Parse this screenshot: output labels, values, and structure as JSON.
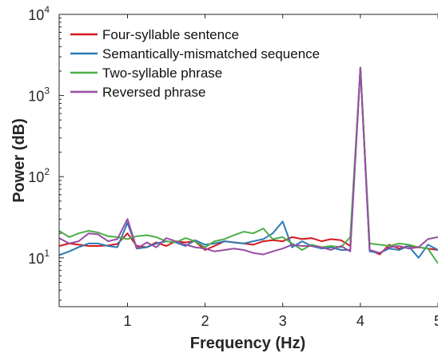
{
  "chart_data": {
    "type": "line",
    "title": "",
    "xlabel": "Frequency (Hz)",
    "ylabel": "Power (dB)",
    "xlim": [
      0.12,
      5
    ],
    "ylim": [
      2.5,
      10000
    ],
    "yscale": "log",
    "grid": false,
    "legend_position": "top-left",
    "x_ticks": [
      {
        "value": 1,
        "label": "1"
      },
      {
        "value": 2,
        "label": "2"
      },
      {
        "value": 3,
        "label": "3"
      },
      {
        "value": 4,
        "label": "4"
      },
      {
        "value": 5,
        "label": "5"
      }
    ],
    "y_ticks": [
      {
        "value": 10,
        "base": "10",
        "exp": "1"
      },
      {
        "value": 100,
        "base": "10",
        "exp": "2"
      },
      {
        "value": 1000,
        "base": "10",
        "exp": "3"
      },
      {
        "value": 10000,
        "base": "10",
        "exp": "4"
      }
    ],
    "series": [
      {
        "name": "Four-syllable sentence",
        "color": "#d7191c",
        "x": [
          0.12,
          0.25,
          0.37,
          0.5,
          0.62,
          0.75,
          0.87,
          1.0,
          1.12,
          1.25,
          1.37,
          1.5,
          1.62,
          1.75,
          1.87,
          2.0,
          2.12,
          2.25,
          2.37,
          2.5,
          2.62,
          2.75,
          2.87,
          3.0,
          3.12,
          3.25,
          3.37,
          3.5,
          3.62,
          3.75,
          3.87,
          4.0,
          4.12,
          4.25,
          4.37,
          4.5,
          4.62,
          4.75,
          4.87,
          5.0
        ],
        "values": [
          14,
          15,
          14.5,
          14,
          14,
          14.2,
          14.8,
          20,
          14,
          13.5,
          15.5,
          14,
          16,
          15.5,
          16,
          12.5,
          14,
          16,
          15.5,
          15,
          14.5,
          16,
          16.5,
          16,
          18,
          17,
          17.5,
          16,
          17,
          16.5,
          14,
          2200,
          12.5,
          11,
          14.5,
          13,
          14,
          13.5,
          13,
          12.5
        ]
      },
      {
        "name": "Semantically-mismatched sequence",
        "color": "#2c7bb6",
        "x": [
          0.12,
          0.25,
          0.37,
          0.5,
          0.62,
          0.75,
          0.87,
          1.0,
          1.12,
          1.25,
          1.37,
          1.5,
          1.62,
          1.75,
          1.87,
          2.0,
          2.12,
          2.25,
          2.37,
          2.5,
          2.62,
          2.75,
          2.87,
          3.0,
          3.12,
          3.25,
          3.37,
          3.5,
          3.62,
          3.75,
          3.87,
          4.0,
          4.12,
          4.25,
          4.37,
          4.5,
          4.62,
          4.75,
          4.87,
          5.0
        ],
        "values": [
          10.8,
          12,
          13.5,
          15,
          15,
          14,
          13.5,
          27,
          13,
          13.5,
          15,
          16,
          15.5,
          14,
          16.5,
          14.5,
          15,
          16,
          15.5,
          15,
          16,
          17,
          20,
          28,
          13.5,
          16,
          14,
          13,
          13.5,
          12.5,
          12.5,
          2200,
          12,
          11.5,
          13,
          12.5,
          14,
          10,
          14.5,
          12.5
        ]
      },
      {
        "name": "Two-syllable phrase",
        "color": "#4daf4a",
        "x": [
          0.12,
          0.25,
          0.37,
          0.5,
          0.62,
          0.75,
          0.87,
          1.0,
          1.12,
          1.25,
          1.37,
          1.5,
          1.62,
          1.75,
          1.87,
          2.0,
          2.12,
          2.25,
          2.37,
          2.5,
          2.62,
          2.75,
          2.87,
          3.0,
          3.12,
          3.25,
          3.37,
          3.5,
          3.62,
          3.75,
          3.87,
          4.0,
          4.12,
          4.25,
          4.37,
          4.5,
          4.62,
          4.75,
          4.87,
          5.0
        ],
        "values": [
          21.5,
          18,
          20,
          21.5,
          20.5,
          18.5,
          18,
          17,
          18.5,
          19,
          18,
          16,
          15.5,
          17.5,
          16,
          13.5,
          16,
          17,
          19,
          21,
          20,
          23,
          17,
          18,
          15,
          12.5,
          14.5,
          13.5,
          14,
          13.5,
          18,
          2200,
          15,
          14.5,
          14,
          15,
          14.5,
          13.5,
          13,
          8.5
        ]
      },
      {
        "name": "Reversed phrase",
        "color": "#984ea3",
        "x": [
          0.12,
          0.25,
          0.37,
          0.5,
          0.62,
          0.75,
          0.87,
          1.0,
          1.12,
          1.25,
          1.37,
          1.5,
          1.62,
          1.75,
          1.87,
          2.0,
          2.12,
          2.25,
          2.37,
          2.5,
          2.62,
          2.75,
          2.87,
          3.0,
          3.12,
          3.25,
          3.37,
          3.5,
          3.62,
          3.75,
          3.87,
          4.0,
          4.12,
          4.25,
          4.37,
          4.5,
          4.62,
          4.75,
          4.87,
          5.0
        ],
        "values": [
          17.5,
          15,
          16,
          20,
          19.5,
          16,
          17,
          30,
          13,
          15.5,
          13.5,
          17.5,
          16,
          14.5,
          13.5,
          13,
          12,
          12.5,
          13,
          12.5,
          11.5,
          11,
          12,
          13,
          14.5,
          14,
          14,
          13.5,
          12.5,
          14,
          12,
          2200,
          12.5,
          11.5,
          13.5,
          14,
          13,
          13.5,
          17,
          18
        ]
      }
    ]
  }
}
